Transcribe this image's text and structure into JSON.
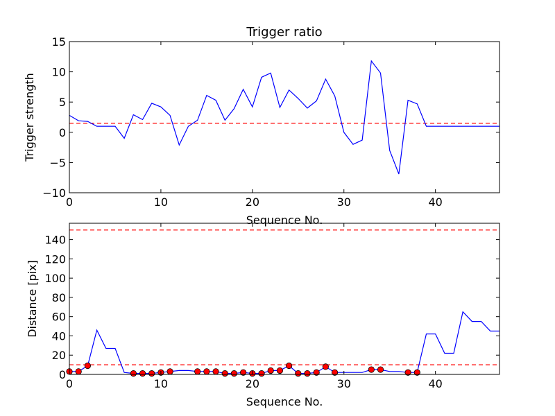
{
  "colors": {
    "line": "#0000ff",
    "threshold": "#ff0000",
    "marker": "#ff0000"
  },
  "chart_data": [
    {
      "type": "line",
      "title": "Trigger ratio",
      "xlabel": "Sequence No.",
      "ylabel": "Trigger strength",
      "xlim": [
        0,
        47
      ],
      "ylim": [
        -10,
        15
      ],
      "xticks": [
        0,
        10,
        20,
        30,
        40
      ],
      "yticks": [
        -10,
        -5,
        0,
        5,
        10,
        15
      ],
      "ytick_labels": [
        "−10",
        "−5",
        "0",
        "5",
        "10",
        "15"
      ],
      "threshold": 1.5,
      "x": [
        0,
        1,
        2,
        3,
        4,
        5,
        6,
        7,
        8,
        9,
        10,
        11,
        12,
        13,
        14,
        15,
        16,
        17,
        18,
        19,
        20,
        21,
        22,
        23,
        24,
        25,
        26,
        27,
        28,
        29,
        30,
        31,
        32,
        33,
        34,
        35,
        36,
        37,
        38,
        39,
        40,
        41,
        42,
        43,
        44,
        45,
        46,
        47
      ],
      "values": [
        2.8,
        1.9,
        1.8,
        1.0,
        1.0,
        1.0,
        -1.0,
        2.9,
        2.1,
        4.8,
        4.2,
        2.8,
        -2.1,
        1.0,
        2.0,
        6.1,
        5.3,
        2.0,
        3.9,
        7.1,
        4.2,
        9.1,
        9.8,
        4.1,
        7.0,
        5.6,
        4.0,
        5.2,
        8.8,
        6.0,
        0.0,
        -2.0,
        -1.3,
        11.8,
        9.8,
        -3.0,
        -6.9,
        5.3,
        4.7,
        1.0,
        1.0,
        1.0,
        1.0,
        1.0,
        1.0,
        1.0,
        1.0,
        1.0
      ]
    },
    {
      "type": "line",
      "xlabel": "Sequence No.",
      "ylabel": "Distance [pix]",
      "xlim": [
        0,
        47
      ],
      "ylim": [
        0,
        157
      ],
      "xticks": [
        0,
        10,
        20,
        30,
        40
      ],
      "yticks": [
        0,
        20,
        40,
        60,
        80,
        100,
        120,
        140
      ],
      "ytick_labels": [
        "0",
        "20",
        "40",
        "60",
        "80",
        "100",
        "120",
        "140"
      ],
      "thresholds": [
        150,
        10
      ],
      "x": [
        0,
        1,
        2,
        3,
        4,
        5,
        6,
        7,
        8,
        9,
        10,
        11,
        12,
        13,
        14,
        15,
        16,
        17,
        18,
        19,
        20,
        21,
        22,
        23,
        24,
        25,
        26,
        27,
        28,
        29,
        30,
        31,
        32,
        33,
        34,
        35,
        36,
        37,
        38,
        39,
        40,
        41,
        42,
        43,
        44,
        45,
        46,
        47
      ],
      "values": [
        3,
        3,
        9,
        46,
        27,
        27,
        2,
        1,
        1,
        1,
        2,
        3,
        4,
        4,
        3,
        3,
        3,
        1,
        1,
        2,
        1,
        1,
        4,
        4,
        9,
        1,
        1,
        2,
        8,
        2,
        2,
        2,
        2,
        5,
        5,
        3,
        3,
        2,
        2,
        42,
        42,
        22,
        22,
        65,
        55,
        55,
        45,
        45
      ],
      "markers": {
        "x": [
          0,
          1,
          2,
          7,
          8,
          9,
          10,
          11,
          14,
          15,
          16,
          17,
          18,
          19,
          20,
          21,
          22,
          23,
          24,
          25,
          26,
          27,
          28,
          29,
          33,
          34,
          37,
          38
        ],
        "values": [
          3,
          3,
          9,
          1,
          1,
          1,
          2,
          3,
          3,
          3,
          3,
          1,
          1,
          2,
          1,
          1,
          4,
          4,
          9,
          1,
          1,
          2,
          8,
          2,
          5,
          5,
          2,
          2
        ]
      }
    }
  ]
}
